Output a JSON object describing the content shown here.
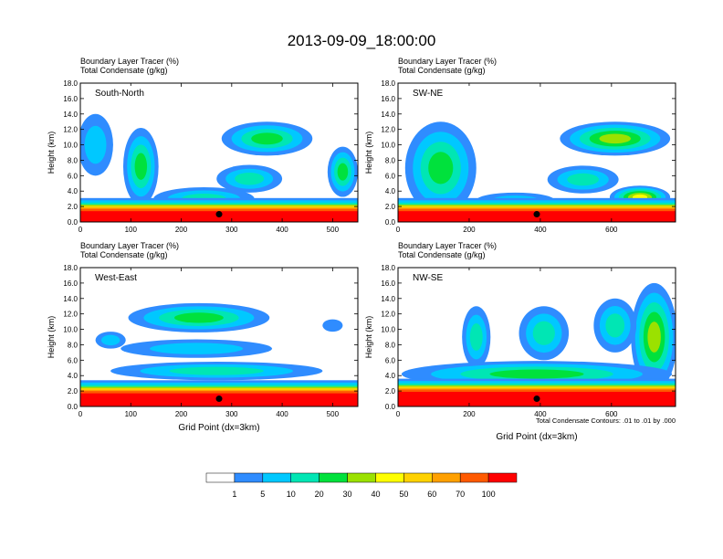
{
  "main_title": "2013-09-09_18:00:00",
  "colors": {
    "levels": [
      "#ffffff",
      "#2f8cff",
      "#00c8ff",
      "#00e6b4",
      "#00e13c",
      "#9be100",
      "#ffff00",
      "#ffd200",
      "#ffa000",
      "#ff5a00",
      "#ff0000"
    ],
    "contour": "#000000",
    "marker": "#000000"
  },
  "colorbar": {
    "labels": [
      "1",
      "5",
      "10",
      "20",
      "30",
      "40",
      "50",
      "60",
      "70",
      "100"
    ]
  },
  "chart_data": [
    {
      "type": "heatmap",
      "id": "south-north",
      "panel_label": "South-North",
      "header_line1": "Boundary Layer Tracer   (%)",
      "header_line2": "Total Condensate   (g/kg)",
      "ylabel": "Height (km)",
      "xlabel": "",
      "ylim": [
        0,
        18
      ],
      "xlim": [
        0,
        550
      ],
      "xticks": [
        0,
        100,
        200,
        300,
        400,
        500
      ],
      "yticks": [
        "0.0",
        "2.0",
        "4.0",
        "6.0",
        "8.0",
        "10.0",
        "12.0",
        "14.0",
        "16.0",
        "18.0"
      ],
      "boundary_layer_top_km": 1.7,
      "marker_x": 275,
      "marker_z": 1.0,
      "clouds": [
        {
          "cx": 370,
          "cz": 10.8,
          "w": 180,
          "h": 4.4,
          "level": 4
        },
        {
          "cx": 335,
          "cz": 5.6,
          "w": 130,
          "h": 3.6,
          "level": 3
        },
        {
          "cx": 120,
          "cz": 7.2,
          "w": 70,
          "h": 10.0,
          "level": 4
        },
        {
          "cx": 30,
          "cz": 10.0,
          "w": 70,
          "h": 8.0,
          "level": 2
        },
        {
          "cx": 520,
          "cz": 6.5,
          "w": 60,
          "h": 6.5,
          "level": 4
        },
        {
          "cx": 245,
          "cz": 3.0,
          "w": 200,
          "h": 3.0,
          "level": 3
        }
      ]
    },
    {
      "type": "heatmap",
      "id": "sw-ne",
      "panel_label": "SW-NE",
      "header_line1": "Boundary Layer Tracer   (%)",
      "header_line2": "Total Condensate   (g/kg)",
      "ylabel": "Height (km)",
      "xlabel": "",
      "ylim": [
        0,
        18
      ],
      "xlim": [
        0,
        780
      ],
      "xticks": [
        0,
        200,
        400,
        600
      ],
      "yticks": [
        "0.0",
        "2.0",
        "4.0",
        "6.0",
        "8.0",
        "10.0",
        "12.0",
        "14.0",
        "16.0",
        "18.0"
      ],
      "boundary_layer_top_km": 1.7,
      "marker_x": 390,
      "marker_z": 1.0,
      "clouds": [
        {
          "cx": 610,
          "cz": 10.8,
          "w": 310,
          "h": 4.4,
          "level": 5
        },
        {
          "cx": 120,
          "cz": 7.0,
          "w": 200,
          "h": 12.0,
          "level": 4
        },
        {
          "cx": 520,
          "cz": 5.5,
          "w": 200,
          "h": 3.6,
          "level": 3
        },
        {
          "cx": 680,
          "cz": 3.2,
          "w": 170,
          "h": 3.0,
          "level": 6
        },
        {
          "cx": 330,
          "cz": 2.8,
          "w": 220,
          "h": 2.0,
          "level": 2
        }
      ]
    },
    {
      "type": "heatmap",
      "id": "west-east",
      "panel_label": "West-East",
      "header_line1": "Boundary Layer Tracer   (%)",
      "header_line2": "Total Condensate   (g/kg)",
      "ylabel": "Height (km)",
      "xlabel": "Grid Point (dx=3km)",
      "ylim": [
        0,
        18
      ],
      "xlim": [
        0,
        550
      ],
      "xticks": [
        0,
        100,
        200,
        300,
        400,
        500
      ],
      "yticks": [
        "0.0",
        "2.0",
        "4.0",
        "6.0",
        "8.0",
        "10.0",
        "12.0",
        "14.0",
        "16.0",
        "18.0"
      ],
      "boundary_layer_top_km": 2.0,
      "marker_x": 275,
      "marker_z": 1.0,
      "clouds": [
        {
          "cx": 235,
          "cz": 11.5,
          "w": 280,
          "h": 3.8,
          "level": 4
        },
        {
          "cx": 230,
          "cz": 7.5,
          "w": 300,
          "h": 2.4,
          "level": 2
        },
        {
          "cx": 60,
          "cz": 8.6,
          "w": 60,
          "h": 2.2,
          "level": 2
        },
        {
          "cx": 270,
          "cz": 4.6,
          "w": 420,
          "h": 2.4,
          "level": 3
        },
        {
          "cx": 500,
          "cz": 10.5,
          "w": 40,
          "h": 1.6,
          "level": 1
        }
      ]
    },
    {
      "type": "heatmap",
      "id": "nw-se",
      "panel_label": "NW-SE",
      "header_line1": "Boundary Layer Tracer   (%)",
      "header_line2": "Total Condensate   (g/kg)",
      "ylabel": "Height (km)",
      "xlabel": "Grid Point (dx=3km)",
      "ylim": [
        0,
        18
      ],
      "xlim": [
        0,
        780
      ],
      "xticks": [
        0,
        200,
        400,
        600
      ],
      "yticks": [
        "0.0",
        "2.0",
        "4.0",
        "6.0",
        "8.0",
        "10.0",
        "12.0",
        "14.0",
        "16.0",
        "18.0"
      ],
      "boundary_layer_top_km": 2.2,
      "marker_x": 390,
      "marker_z": 1.0,
      "contour_note": "Total Condensate Contours: .01 to .01 by .000",
      "clouds": [
        {
          "cx": 720,
          "cz": 9.0,
          "w": 130,
          "h": 14.0,
          "level": 5
        },
        {
          "cx": 220,
          "cz": 9.0,
          "w": 80,
          "h": 8.0,
          "level": 3
        },
        {
          "cx": 410,
          "cz": 9.5,
          "w": 140,
          "h": 7.0,
          "level": 3
        },
        {
          "cx": 610,
          "cz": 10.5,
          "w": 120,
          "h": 7.0,
          "level": 3
        },
        {
          "cx": 390,
          "cz": 4.2,
          "w": 760,
          "h": 3.4,
          "level": 4
        }
      ]
    }
  ]
}
